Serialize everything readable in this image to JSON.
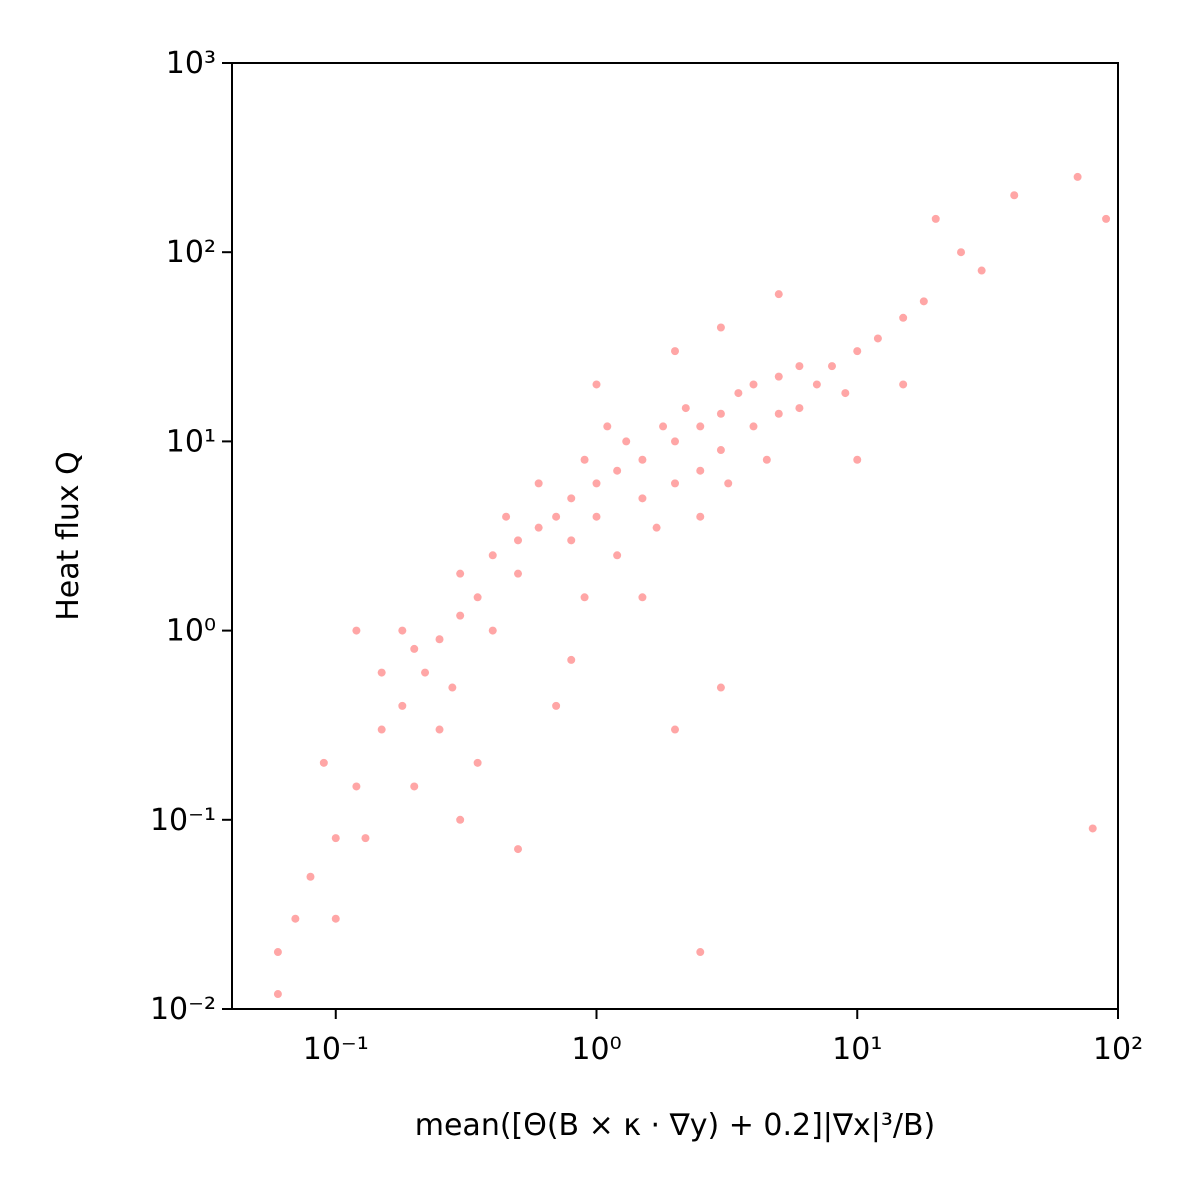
{
  "chart_data": {
    "type": "scatter",
    "x_label": "mean([Θ(B × κ · ∇y) + 0.2]|∇x|³/B)",
    "y_label": "Heat flux Q",
    "xscale": "log",
    "yscale": "log",
    "xlim": [
      0.04,
      100
    ],
    "ylim": [
      0.01,
      1000
    ],
    "xticks": [
      {
        "value": 0.1,
        "label": "10⁻¹"
      },
      {
        "value": 1,
        "label": "10⁰"
      },
      {
        "value": 10,
        "label": "10¹"
      },
      {
        "value": 100,
        "label": "10²"
      }
    ],
    "yticks": [
      {
        "value": 0.01,
        "label": "10⁻²"
      },
      {
        "value": 0.1,
        "label": "10⁻¹"
      },
      {
        "value": 1,
        "label": "10⁰"
      },
      {
        "value": 10,
        "label": "10¹"
      },
      {
        "value": 100,
        "label": "10²"
      },
      {
        "value": 1000,
        "label": "10³"
      }
    ],
    "color": "#ff0000",
    "alpha": 0.35,
    "x": [
      1,
      1.2,
      1.5,
      2,
      2.5,
      3,
      1,
      1.5,
      2,
      0.8,
      0.7,
      0.6,
      0.5,
      0.4,
      1.8,
      2.2,
      3.5,
      4,
      5,
      6,
      3,
      4,
      5,
      2.5,
      1.3,
      0.9,
      1.1,
      0.5,
      0.35,
      0.3,
      0.25,
      0.22,
      0.28,
      0.2,
      0.18,
      0.15,
      0.3,
      0.45,
      0.6,
      0.8,
      7,
      8,
      10,
      12,
      15,
      18,
      9,
      6,
      4.5,
      1.7,
      1.2,
      0.9,
      2.5,
      0.4,
      0.25,
      0.12,
      0.1,
      0.08,
      0.07,
      0.06,
      0.09,
      0.13,
      0.2,
      0.3,
      0.15,
      0.12,
      0.5,
      2.5,
      3,
      25,
      40,
      70,
      90,
      30,
      20,
      5,
      3,
      2,
      1,
      0.8,
      10,
      15,
      80,
      2,
      0.7,
      1.5,
      3.2,
      0.35,
      0.18,
      0.1,
      0.06
    ],
    "y": [
      6,
      7,
      8,
      10,
      12,
      14,
      4,
      5,
      6,
      5,
      4,
      3.5,
      3,
      2.5,
      12,
      15,
      18,
      20,
      22,
      25,
      9,
      12,
      14,
      7,
      10,
      8,
      12,
      2,
      1.5,
      1.2,
      0.9,
      0.6,
      0.5,
      0.8,
      0.4,
      0.3,
      2,
      4,
      6,
      3,
      20,
      25,
      30,
      35,
      45,
      55,
      18,
      15,
      8,
      3.5,
      2.5,
      1.5,
      4,
      1,
      0.3,
      0.15,
      0.08,
      0.05,
      0.03,
      0.02,
      0.2,
      0.08,
      0.15,
      0.1,
      0.6,
      1,
      0.07,
      0.02,
      0.5,
      100,
      200,
      250,
      150,
      80,
      150,
      60,
      40,
      30,
      20,
      0.7,
      8,
      20,
      0.09,
      0.3,
      0.4,
      1.5,
      6,
      0.2,
      1,
      0.03,
      0.012
    ]
  }
}
